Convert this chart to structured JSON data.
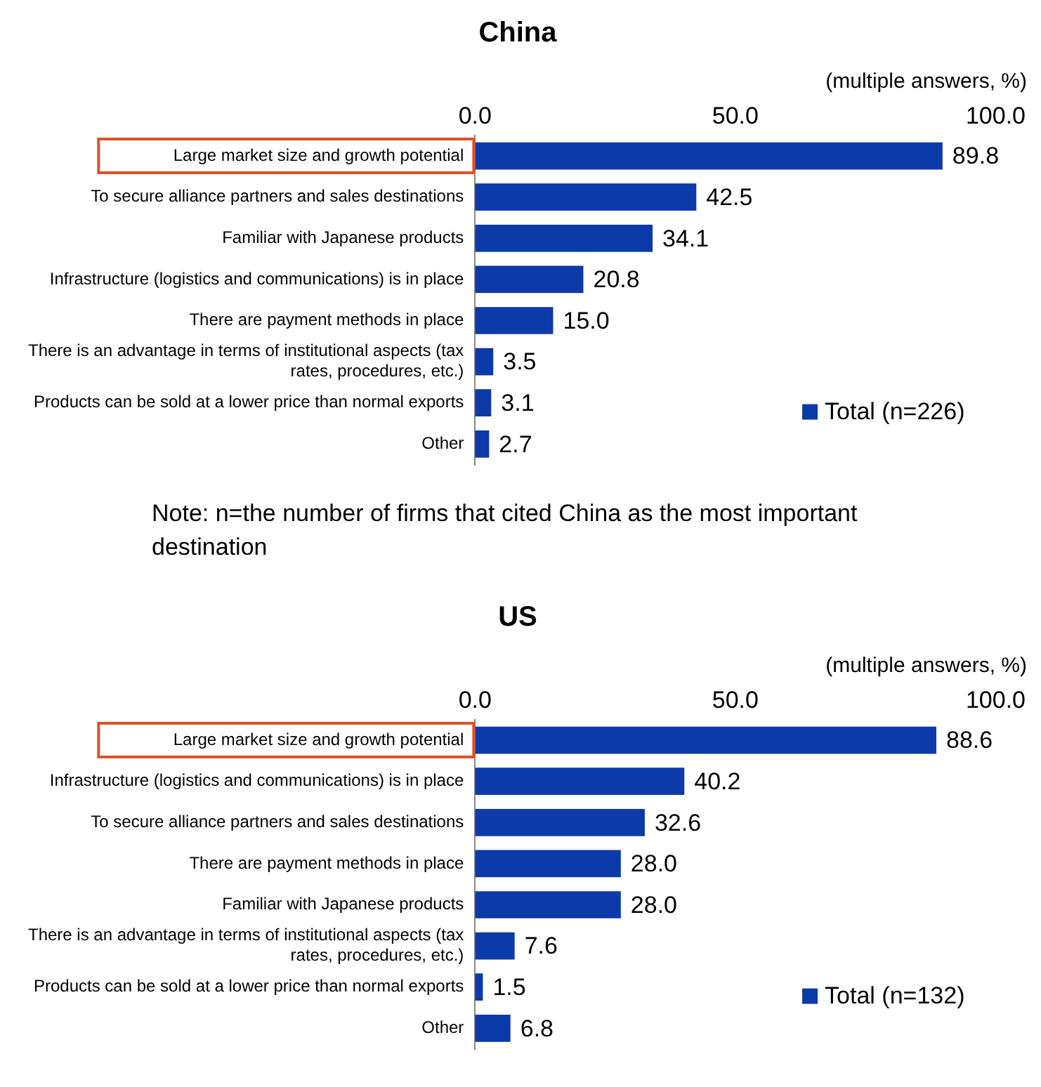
{
  "chart_data": [
    {
      "type": "bar",
      "orientation": "horizontal",
      "title": "China",
      "categories": [
        "Large market size and growth potential",
        "To secure alliance partners and sales destinations",
        "Familiar with Japanese products",
        "Infrastructure (logistics and communications) is in place",
        "There are payment methods in place",
        "There is an advantage in terms of institutional aspects (tax rates, procedures, etc.)",
        "Products can be sold at a lower price than normal exports",
        "Other"
      ],
      "series": [
        {
          "name": "Total (n=226)",
          "color": "#0d3aa9",
          "values": [
            89.8,
            42.5,
            34.1,
            20.8,
            15.0,
            3.5,
            3.1,
            2.7
          ],
          "value_labels": [
            "89.8",
            "42.5",
            "34.1",
            "20.8",
            "15.0",
            "3.5",
            "3.1",
            "2.7"
          ]
        }
      ],
      "xlim": [
        0,
        100
      ],
      "xticks": [
        {
          "value": 0,
          "label": "0.0"
        },
        {
          "value": 50,
          "label": "50.0"
        },
        {
          "value": 100,
          "label": "100.0"
        }
      ],
      "grid": false,
      "legend": "bottom right",
      "annotations": [
        "(multiple answers, %)",
        "Note: n=the number of firms that cited China as the most important destination"
      ]
    },
    {
      "type": "bar",
      "orientation": "horizontal",
      "title": "US",
      "categories": [
        "Large market size and growth potential",
        "Infrastructure (logistics and communications) is in place",
        "To secure alliance partners and sales destinations",
        "There are payment methods in place",
        "Familiar with Japanese products",
        "There is an advantage in terms of institutional aspects (tax rates, procedures, etc.)",
        "Products can be sold at a lower price than normal exports",
        "Other"
      ],
      "series": [
        {
          "name": "Total (n=132)",
          "color": "#0d3aa9",
          "values": [
            88.6,
            40.2,
            32.6,
            28.0,
            28.0,
            7.6,
            1.5,
            6.8
          ],
          "value_labels": [
            "88.6",
            "40.2",
            "32.6",
            "28.0",
            "28.0",
            "7.6",
            "1.5",
            "6.8"
          ]
        }
      ],
      "xlim": [
        0,
        100
      ],
      "xticks": [
        {
          "value": 0,
          "label": "0.0"
        },
        {
          "value": 50,
          "label": "50.0"
        },
        {
          "value": 100,
          "label": "100.0"
        }
      ],
      "grid": false,
      "legend": "bottom right",
      "annotations": [
        "(multiple answers, %)"
      ]
    }
  ]
}
